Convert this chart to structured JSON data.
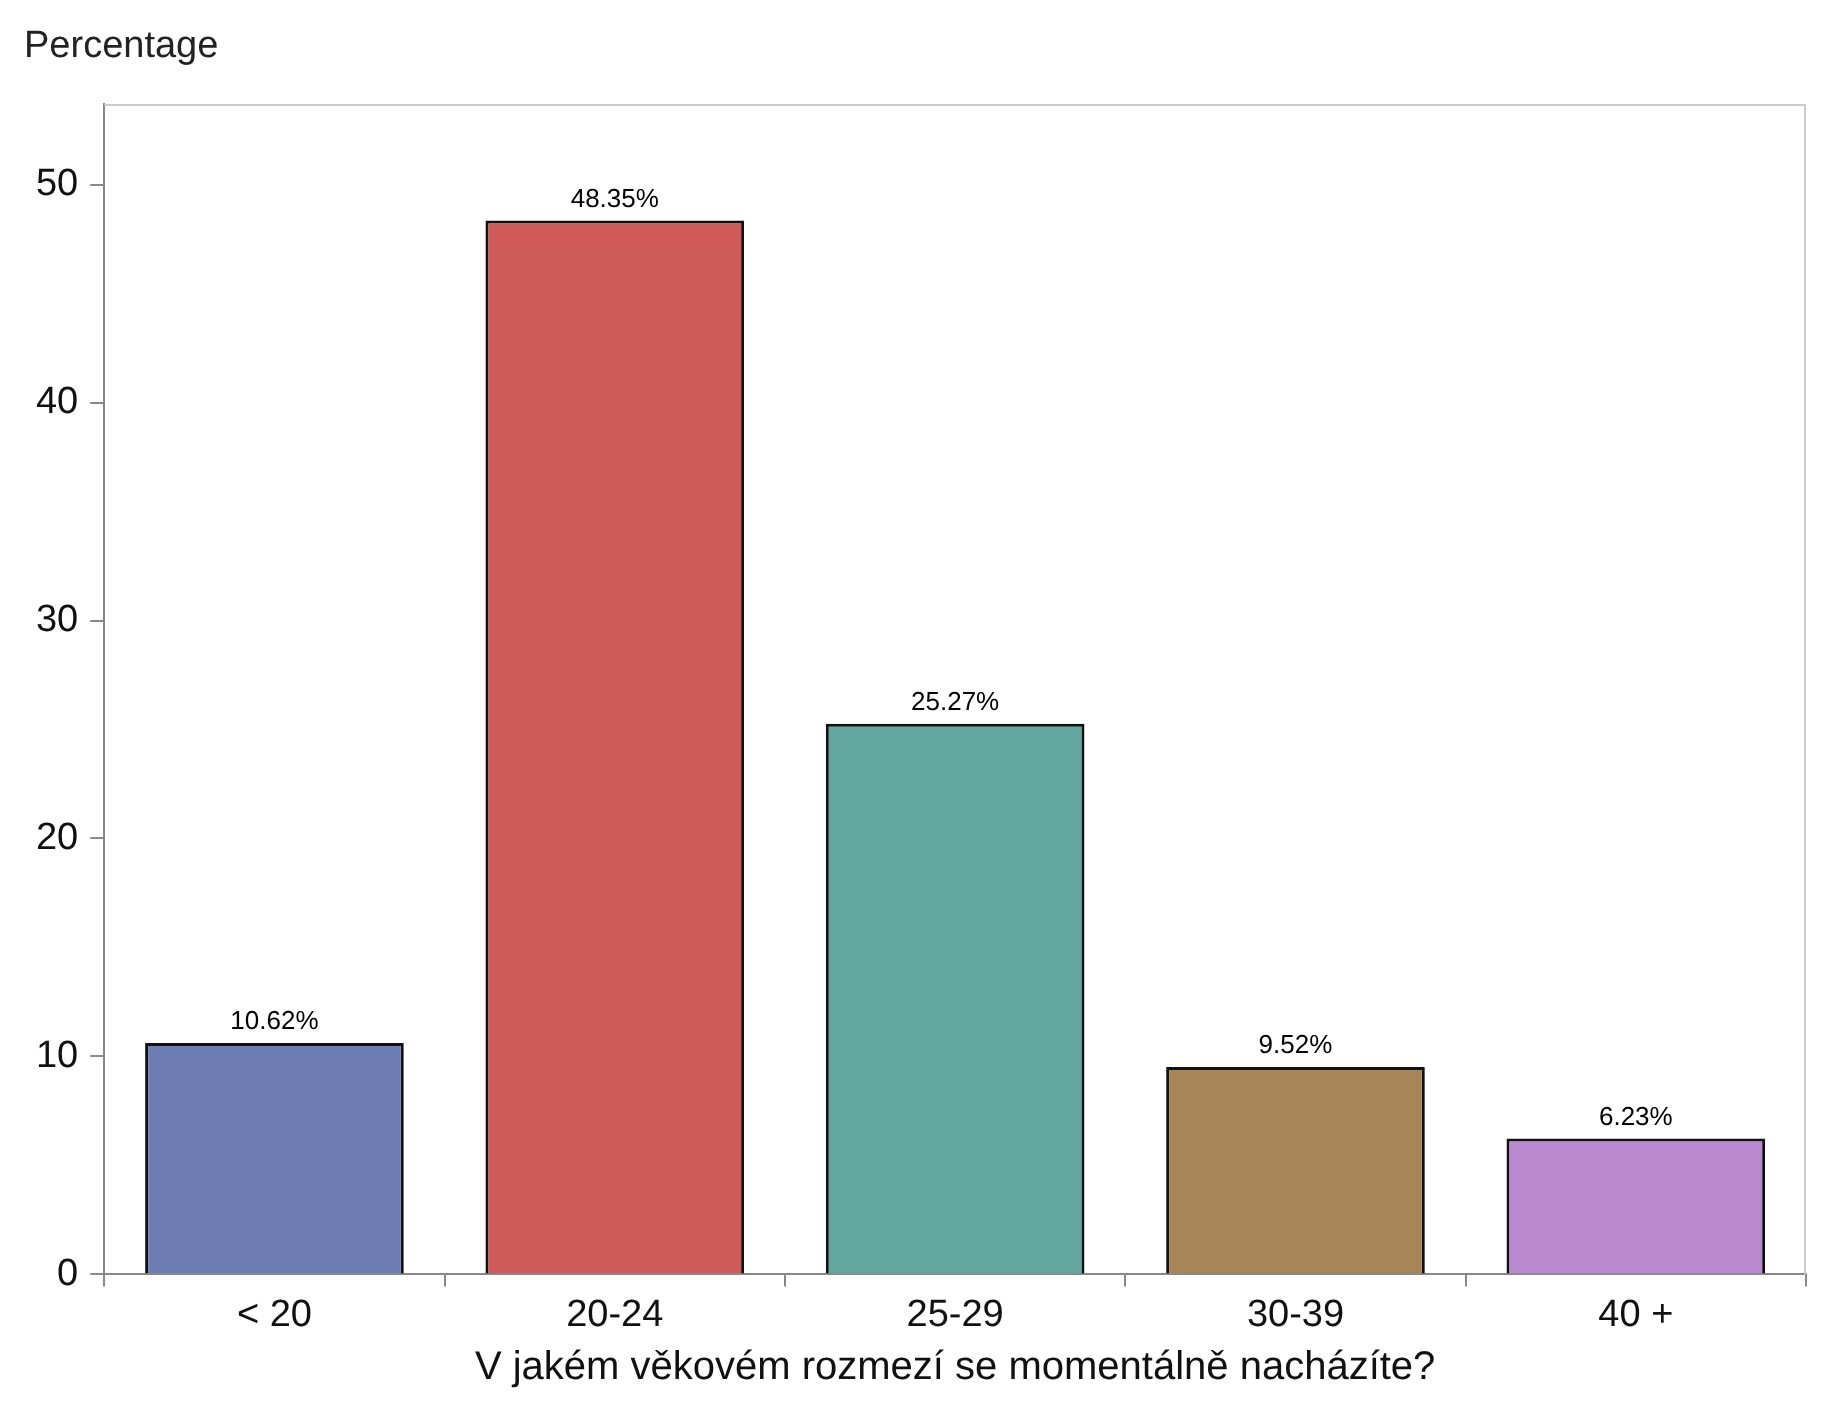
{
  "chart_data": {
    "type": "bar",
    "ylabel": "Percentage",
    "xlabel": "V jakém věkovém rozmezí se momentálně nacházíte?",
    "categories": [
      "< 20",
      "20-24",
      "25-29",
      "30-39",
      "40 +"
    ],
    "values": [
      10.62,
      48.35,
      25.27,
      9.52,
      6.23
    ],
    "value_labels": [
      "10.62%",
      "48.35%",
      "25.27%",
      "9.52%",
      "6.23%"
    ],
    "colors": [
      "#6f7db5",
      "#d05a5a",
      "#63a59f",
      "#a88558",
      "#b98ad0"
    ],
    "ylim": [
      0,
      53.7
    ],
    "yticks": [
      0,
      10,
      20,
      30,
      40,
      50
    ],
    "grid": false,
    "legend": false
  }
}
